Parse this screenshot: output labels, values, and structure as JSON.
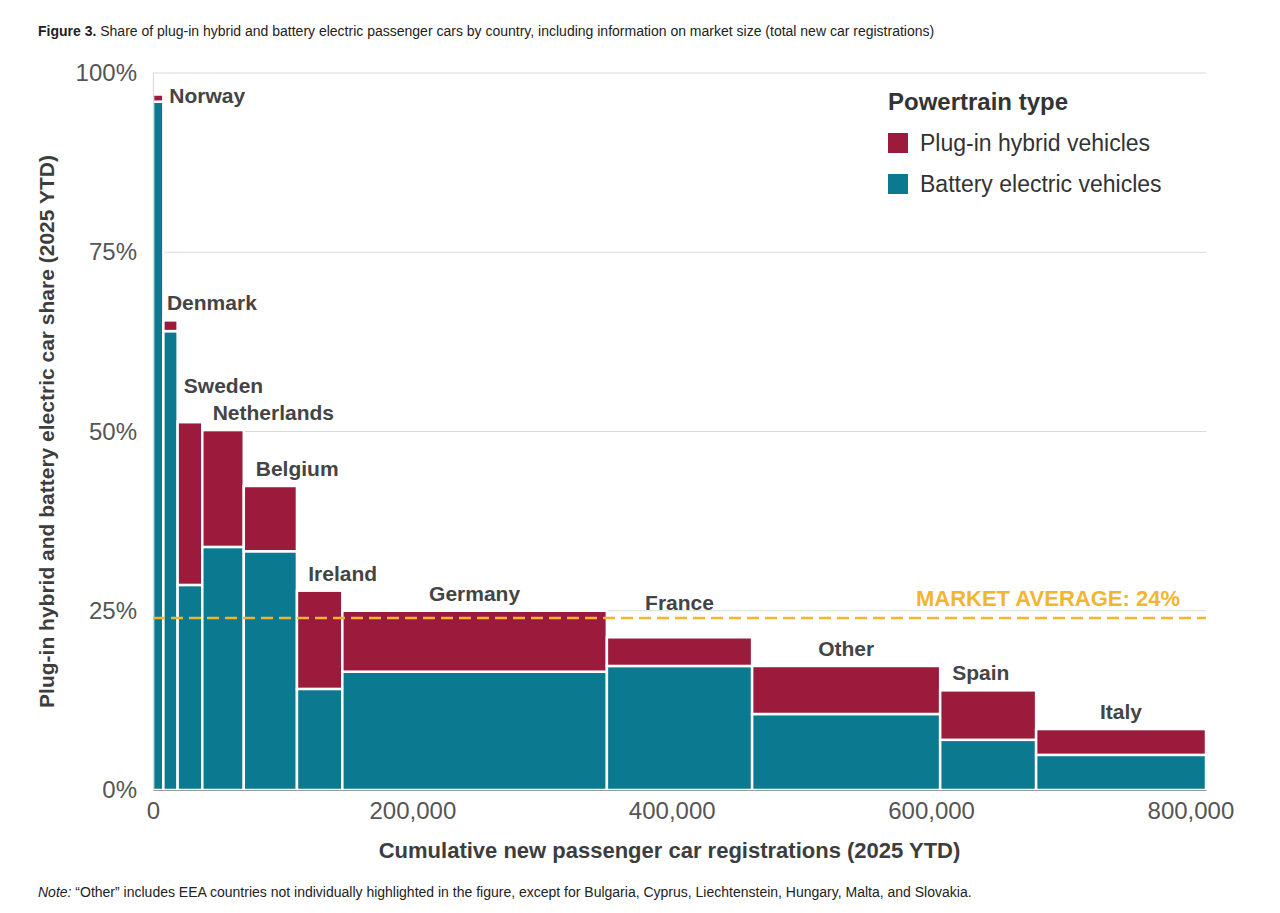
{
  "chart_data": {
    "type": "marimekko",
    "title": "Figure 3. Share of plug-in hybrid and battery electric passenger cars by country, including information on market size (total new car registrations)",
    "note": "Note: “Other” includes EEA countries not individually highlighted in the figure, except for Bulgaria, Cyprus, Liechtenstein, Hungary, Malta, and Slovakia.",
    "x_label": "Cumulative new passenger car registrations (2025 YTD)",
    "y_label": "Plug-in hybrid and battery electric car share (2025 YTD)",
    "legend_title": "Powertrain type",
    "categories": [
      "Norway",
      "Denmark",
      "Sweden",
      "Netherlands",
      "Belgium",
      "Ireland",
      "Germany",
      "France",
      "Other",
      "Spain",
      "Italy"
    ],
    "registrations": [
      8000,
      11000,
      19000,
      32000,
      41000,
      35000,
      204000,
      112000,
      145000,
      74000,
      131000
    ],
    "series": [
      {
        "name": "Battery electric vehicles",
        "color": "#0b7a90",
        "values": [
          96,
          64,
          28.6,
          33.9,
          33.3,
          14.1,
          16.5,
          17.3,
          10.6,
          7,
          4.9
        ]
      },
      {
        "name": "Plug-in hybrid vehicles",
        "color": "#9c1a3b",
        "values": [
          1,
          1.5,
          22.7,
          16.3,
          9.1,
          13.7,
          8.5,
          4,
          6.7,
          6.9,
          3.6
        ]
      }
    ],
    "annotations": [
      {
        "text": "MARKET AVERAGE: 24%",
        "value": 24
      }
    ],
    "xlim": [
      0,
      812000
    ],
    "xticks": [
      0,
      {
        "value": 200000,
        "label": "200,000"
      },
      {
        "value": 400000,
        "label": "400,000"
      },
      {
        "value": 600000,
        "label": "600,000"
      },
      {
        "value": 800000,
        "label": "800,000"
      }
    ],
    "ylim": [
      0,
      100
    ],
    "yticks": [
      {
        "value": 0,
        "label": "0%"
      },
      {
        "value": 25,
        "label": "25%"
      },
      {
        "value": 50,
        "label": "50%"
      },
      {
        "value": 75,
        "label": "75%"
      },
      {
        "value": 100,
        "label": "100%"
      }
    ],
    "stacked": true,
    "grid": true,
    "legend": "top-right"
  }
}
